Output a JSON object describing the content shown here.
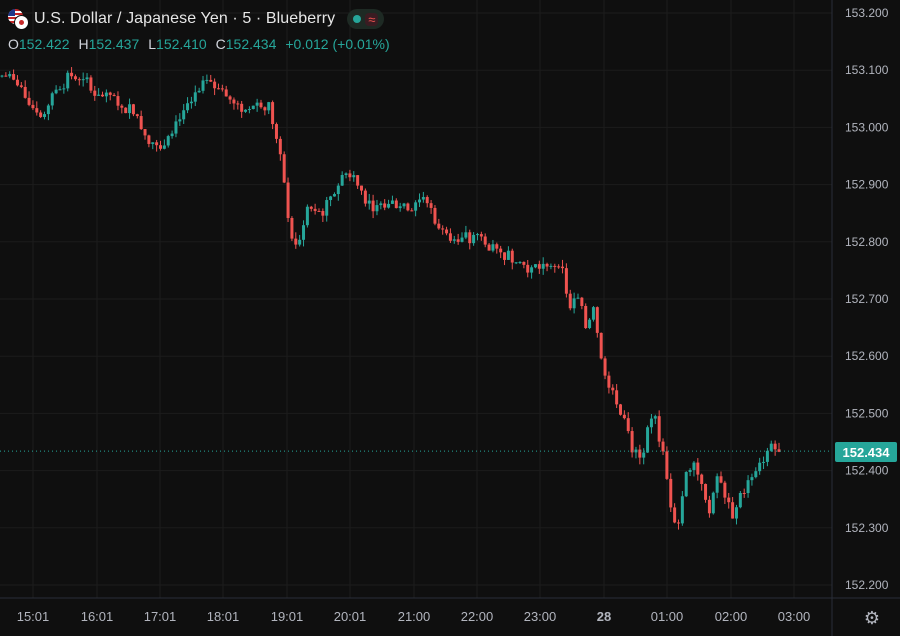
{
  "header": {
    "title": "U.S. Dollar / Japanese Yen · 5 · Blueberry",
    "status_dot_color": "#26a69a",
    "wave_icon": "≈"
  },
  "ohlc": {
    "o_label": "O",
    "o_value": "152.422",
    "h_label": "H",
    "h_value": "152.437",
    "l_label": "L",
    "l_value": "152.410",
    "c_label": "C",
    "c_value": "152.434",
    "change": "+0.012 (+0.01%)"
  },
  "last_price_label": "152.434",
  "colors": {
    "up": "#26a69a",
    "down": "#ef5350",
    "bg": "#0f0f0f",
    "grid": "#1c1c1c"
  },
  "chart_data": {
    "type": "candlestick",
    "y_ticks": [
      "153.200",
      "153.100",
      "153.000",
      "152.900",
      "152.800",
      "152.700",
      "152.600",
      "152.500",
      "152.400",
      "152.300",
      "152.200"
    ],
    "x_ticks": [
      "15:01",
      "16:01",
      "17:01",
      "18:01",
      "19:01",
      "20:01",
      "21:00",
      "22:00",
      "23:00",
      "28",
      "01:00",
      "02:00",
      "03:00"
    ],
    "ylim": [
      152.16,
      153.22
    ],
    "last_price": 152.434,
    "close_path": [
      [
        0,
        153.09
      ],
      [
        2,
        153.07
      ],
      [
        3,
        153.04
      ],
      [
        5,
        153.02
      ],
      [
        6,
        153.06
      ],
      [
        7,
        153.07
      ],
      [
        8,
        153.09
      ],
      [
        10,
        153.08
      ],
      [
        12,
        153.06
      ],
      [
        14,
        153.05
      ],
      [
        15,
        153.03
      ],
      [
        16,
        153.04
      ],
      [
        17,
        153.02
      ],
      [
        18,
        152.99
      ],
      [
        20,
        152.96
      ],
      [
        21,
        152.99
      ],
      [
        23,
        153.03
      ],
      [
        25,
        153.06
      ],
      [
        26,
        153.08
      ],
      [
        27,
        153.07
      ],
      [
        28,
        153.07
      ],
      [
        29,
        153.05
      ],
      [
        30,
        153.04
      ],
      [
        31,
        153.03
      ],
      [
        32,
        153.04
      ],
      [
        33,
        153.04
      ],
      [
        34,
        153.04
      ],
      [
        35,
        152.98
      ],
      [
        36,
        152.9
      ],
      [
        37,
        152.8
      ],
      [
        38,
        152.8
      ],
      [
        39,
        152.86
      ],
      [
        40,
        152.85
      ],
      [
        41,
        152.85
      ],
      [
        42,
        152.88
      ],
      [
        44,
        152.92
      ],
      [
        45,
        152.92
      ],
      [
        46,
        152.89
      ],
      [
        47,
        152.87
      ],
      [
        48,
        152.86
      ],
      [
        50,
        152.87
      ],
      [
        52,
        152.86
      ],
      [
        53,
        152.87
      ],
      [
        54,
        152.88
      ],
      [
        55,
        152.86
      ],
      [
        56,
        152.82
      ],
      [
        57,
        152.82
      ],
      [
        58,
        152.81
      ],
      [
        60,
        152.8
      ],
      [
        61,
        152.81
      ],
      [
        62,
        152.8
      ],
      [
        63,
        152.79
      ],
      [
        64,
        152.78
      ],
      [
        65,
        152.78
      ],
      [
        66,
        152.77
      ],
      [
        67,
        152.76
      ],
      [
        68,
        152.75
      ],
      [
        70,
        152.76
      ],
      [
        71,
        152.76
      ],
      [
        72,
        152.75
      ],
      [
        73,
        152.68
      ],
      [
        74,
        152.7
      ],
      [
        75,
        152.65
      ],
      [
        76,
        152.69
      ],
      [
        77,
        152.6
      ],
      [
        78,
        152.55
      ],
      [
        79,
        152.52
      ],
      [
        80,
        152.49
      ],
      [
        81,
        152.43
      ],
      [
        82,
        152.42
      ],
      [
        83,
        152.47
      ],
      [
        84,
        152.5
      ],
      [
        85,
        152.43
      ],
      [
        86,
        152.34
      ],
      [
        87,
        152.31
      ],
      [
        88,
        152.4
      ],
      [
        89,
        152.42
      ],
      [
        90,
        152.38
      ],
      [
        91,
        152.33
      ],
      [
        92,
        152.39
      ],
      [
        93,
        152.35
      ],
      [
        94,
        152.32
      ],
      [
        95,
        152.36
      ],
      [
        96,
        152.38
      ],
      [
        97,
        152.4
      ],
      [
        98,
        152.42
      ],
      [
        99,
        152.45
      ],
      [
        100,
        152.43
      ]
    ]
  }
}
